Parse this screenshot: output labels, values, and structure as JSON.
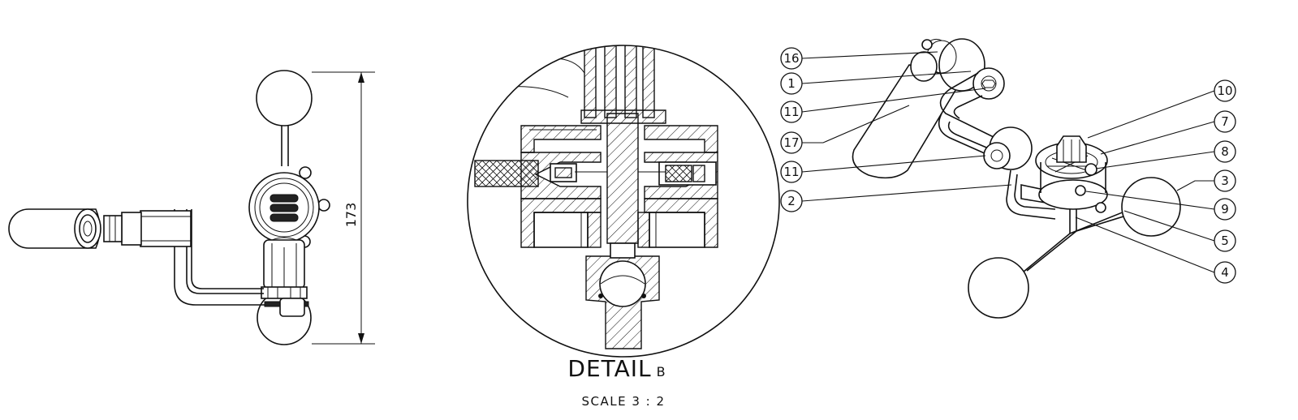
{
  "dimension": {
    "overall_height": "173"
  },
  "detail": {
    "title": "DETAIL",
    "letter": "B",
    "scale": "SCALE 3 : 2"
  },
  "balloons": [
    {
      "label": "16"
    },
    {
      "label": "1"
    },
    {
      "label": "11"
    },
    {
      "label": "17"
    },
    {
      "label": "11"
    },
    {
      "label": "2"
    },
    {
      "label": "10"
    },
    {
      "label": "7"
    },
    {
      "label": "8"
    },
    {
      "label": "3"
    },
    {
      "label": "9"
    },
    {
      "label": "5"
    },
    {
      "label": "4"
    }
  ],
  "colors": {
    "line": "#111111",
    "background": "#ffffff"
  }
}
